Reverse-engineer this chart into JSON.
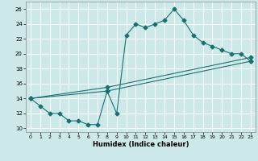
{
  "xlabel": "Humidex (Indice chaleur)",
  "bg_color": "#cde8e8",
  "grid_color": "#ffffff",
  "line_color": "#1a7070",
  "xlim": [
    -0.5,
    23.5
  ],
  "ylim": [
    9.5,
    27
  ],
  "xticks": [
    0,
    1,
    2,
    3,
    4,
    5,
    6,
    7,
    8,
    9,
    10,
    11,
    12,
    13,
    14,
    15,
    16,
    17,
    18,
    19,
    20,
    21,
    22,
    23
  ],
  "yticks": [
    10,
    12,
    14,
    16,
    18,
    20,
    22,
    24,
    26
  ],
  "line1_x": [
    0,
    1,
    2,
    3,
    4,
    5,
    6,
    7,
    8,
    9,
    10,
    11,
    12,
    13,
    14,
    15,
    16,
    17,
    18,
    19,
    20,
    21,
    22,
    23
  ],
  "line1_y": [
    14,
    13,
    12,
    12,
    11,
    11,
    10.5,
    10.5,
    15,
    12,
    22.5,
    24,
    23.5,
    24,
    24.5,
    26,
    24.5,
    22.5,
    21.5,
    21,
    20.5,
    20,
    20,
    19
  ],
  "line2_x": [
    0,
    8,
    23
  ],
  "line2_y": [
    14,
    15,
    19
  ],
  "line3_x": [
    0,
    8,
    23
  ],
  "line3_y": [
    14,
    15.5,
    19.5
  ],
  "markersize": 2.5,
  "linewidth": 0.8
}
